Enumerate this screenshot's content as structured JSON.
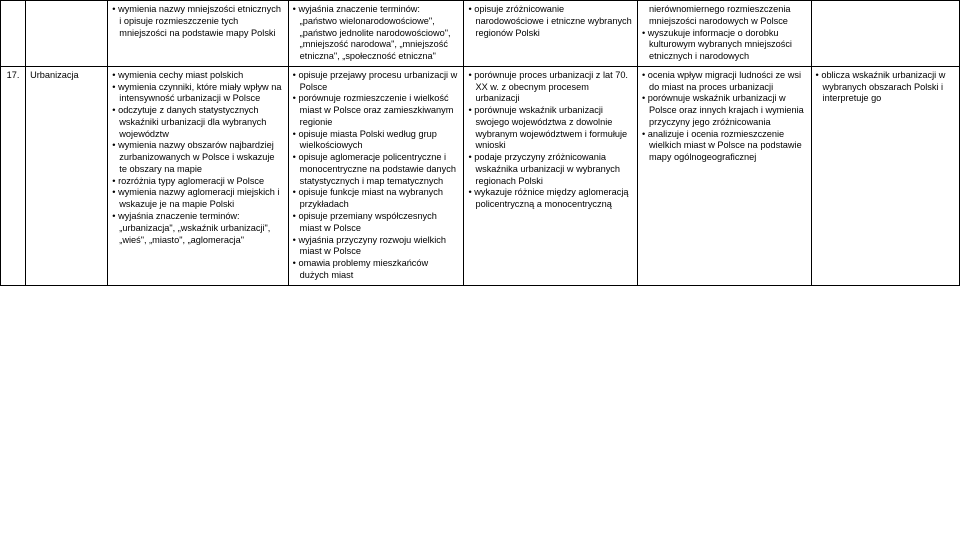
{
  "colors": {
    "border": "#000000",
    "text": "#000000",
    "bg": "#ffffff"
  },
  "font": {
    "size_pt": 9.2,
    "family": "Arial"
  },
  "row1": {
    "colA": {
      "items": [
        "wymienia nazwy mniejszości etnicznych i opisuje rozmieszczenie tych mniejszości na podstawie mapy Polski"
      ]
    },
    "colB": {
      "items": [
        "wyjaśnia znaczenie terminów: „państwo wielonarodowościowe\", „państwo jednolite narodowościowo\", „mniejszość narodowa\", „mniejszość etniczna\", „społeczność etniczna\""
      ]
    },
    "colC": {
      "items": [
        "opisuje zróżnicowanie narodowościowe i etniczne wybranych regionów Polski"
      ]
    },
    "colD": {
      "cont": "nierównomiernego rozmieszczenia mniejszości narodowych w Polsce",
      "items": [
        "wyszukuje informacje o dorobku kulturowym wybranych mniejszości etnicznych i narodowych"
      ]
    }
  },
  "row2": {
    "num": "17.",
    "topic": "Urbanizacja",
    "colA": {
      "items": [
        "wymienia cechy miast polskich",
        "wymienia czynniki, które miały wpływ na intensywność urbanizacji w Polsce",
        "odczytuje z danych statystycznych wskaźniki urbanizacji dla wybranych województw",
        "wymienia nazwy obszarów najbardziej zurbanizowanych w Polsce i wskazuje te obszary na mapie",
        "rozróżnia typy aglomeracji w Polsce",
        "wymienia nazwy aglomeracji miejskich i wskazuje je na mapie Polski",
        "wyjaśnia znaczenie terminów: „urbanizacja\", „wskaźnik urbanizacji\", „wieś\", „miasto\", „aglomeracja\""
      ]
    },
    "colB": {
      "items": [
        "opisuje przejawy procesu urbanizacji w Polsce",
        "porównuje rozmieszczenie i wielkość miast w Polsce oraz zamieszkiwanym regionie",
        "opisuje miasta Polski według grup wielkościowych",
        "opisuje aglomeracje policentryczne i monocentryczne na podstawie danych statystycznych i map tematycznych",
        "opisuje funkcje miast na wybranych przykładach",
        "opisuje przemiany współczesnych miast w Polsce",
        "wyjaśnia przyczyny rozwoju wielkich miast w Polsce",
        "omawia problemy mieszkańców dużych miast"
      ]
    },
    "colC": {
      "items": [
        "porównuje proces urbanizacji z lat 70. XX w. z obecnym procesem urbanizacji",
        "porównuje wskaźnik urbanizacji swojego województwa z dowolnie wybranym województwem i formułuje wnioski",
        "podaje przyczyny zróżnicowania wskaźnika urbanizacji w wybranych regionach Polski",
        "wykazuje różnice między aglomeracją policentryczną a monocentryczną"
      ]
    },
    "colD": {
      "items": [
        "ocenia wpływ migracji ludności ze wsi do miast na proces urbanizacji",
        "porównuje wskaźnik urbanizacji w Polsce oraz innych krajach i wymienia przyczyny jego zróżnicowania",
        "analizuje i ocenia rozmieszczenie wielkich miast w Polsce na podstawie mapy ogólnogeograficznej"
      ]
    },
    "colE": {
      "items": [
        "oblicza wskaźnik urbanizacji w wybranych obszarach Polski i interpretuje go"
      ]
    }
  }
}
